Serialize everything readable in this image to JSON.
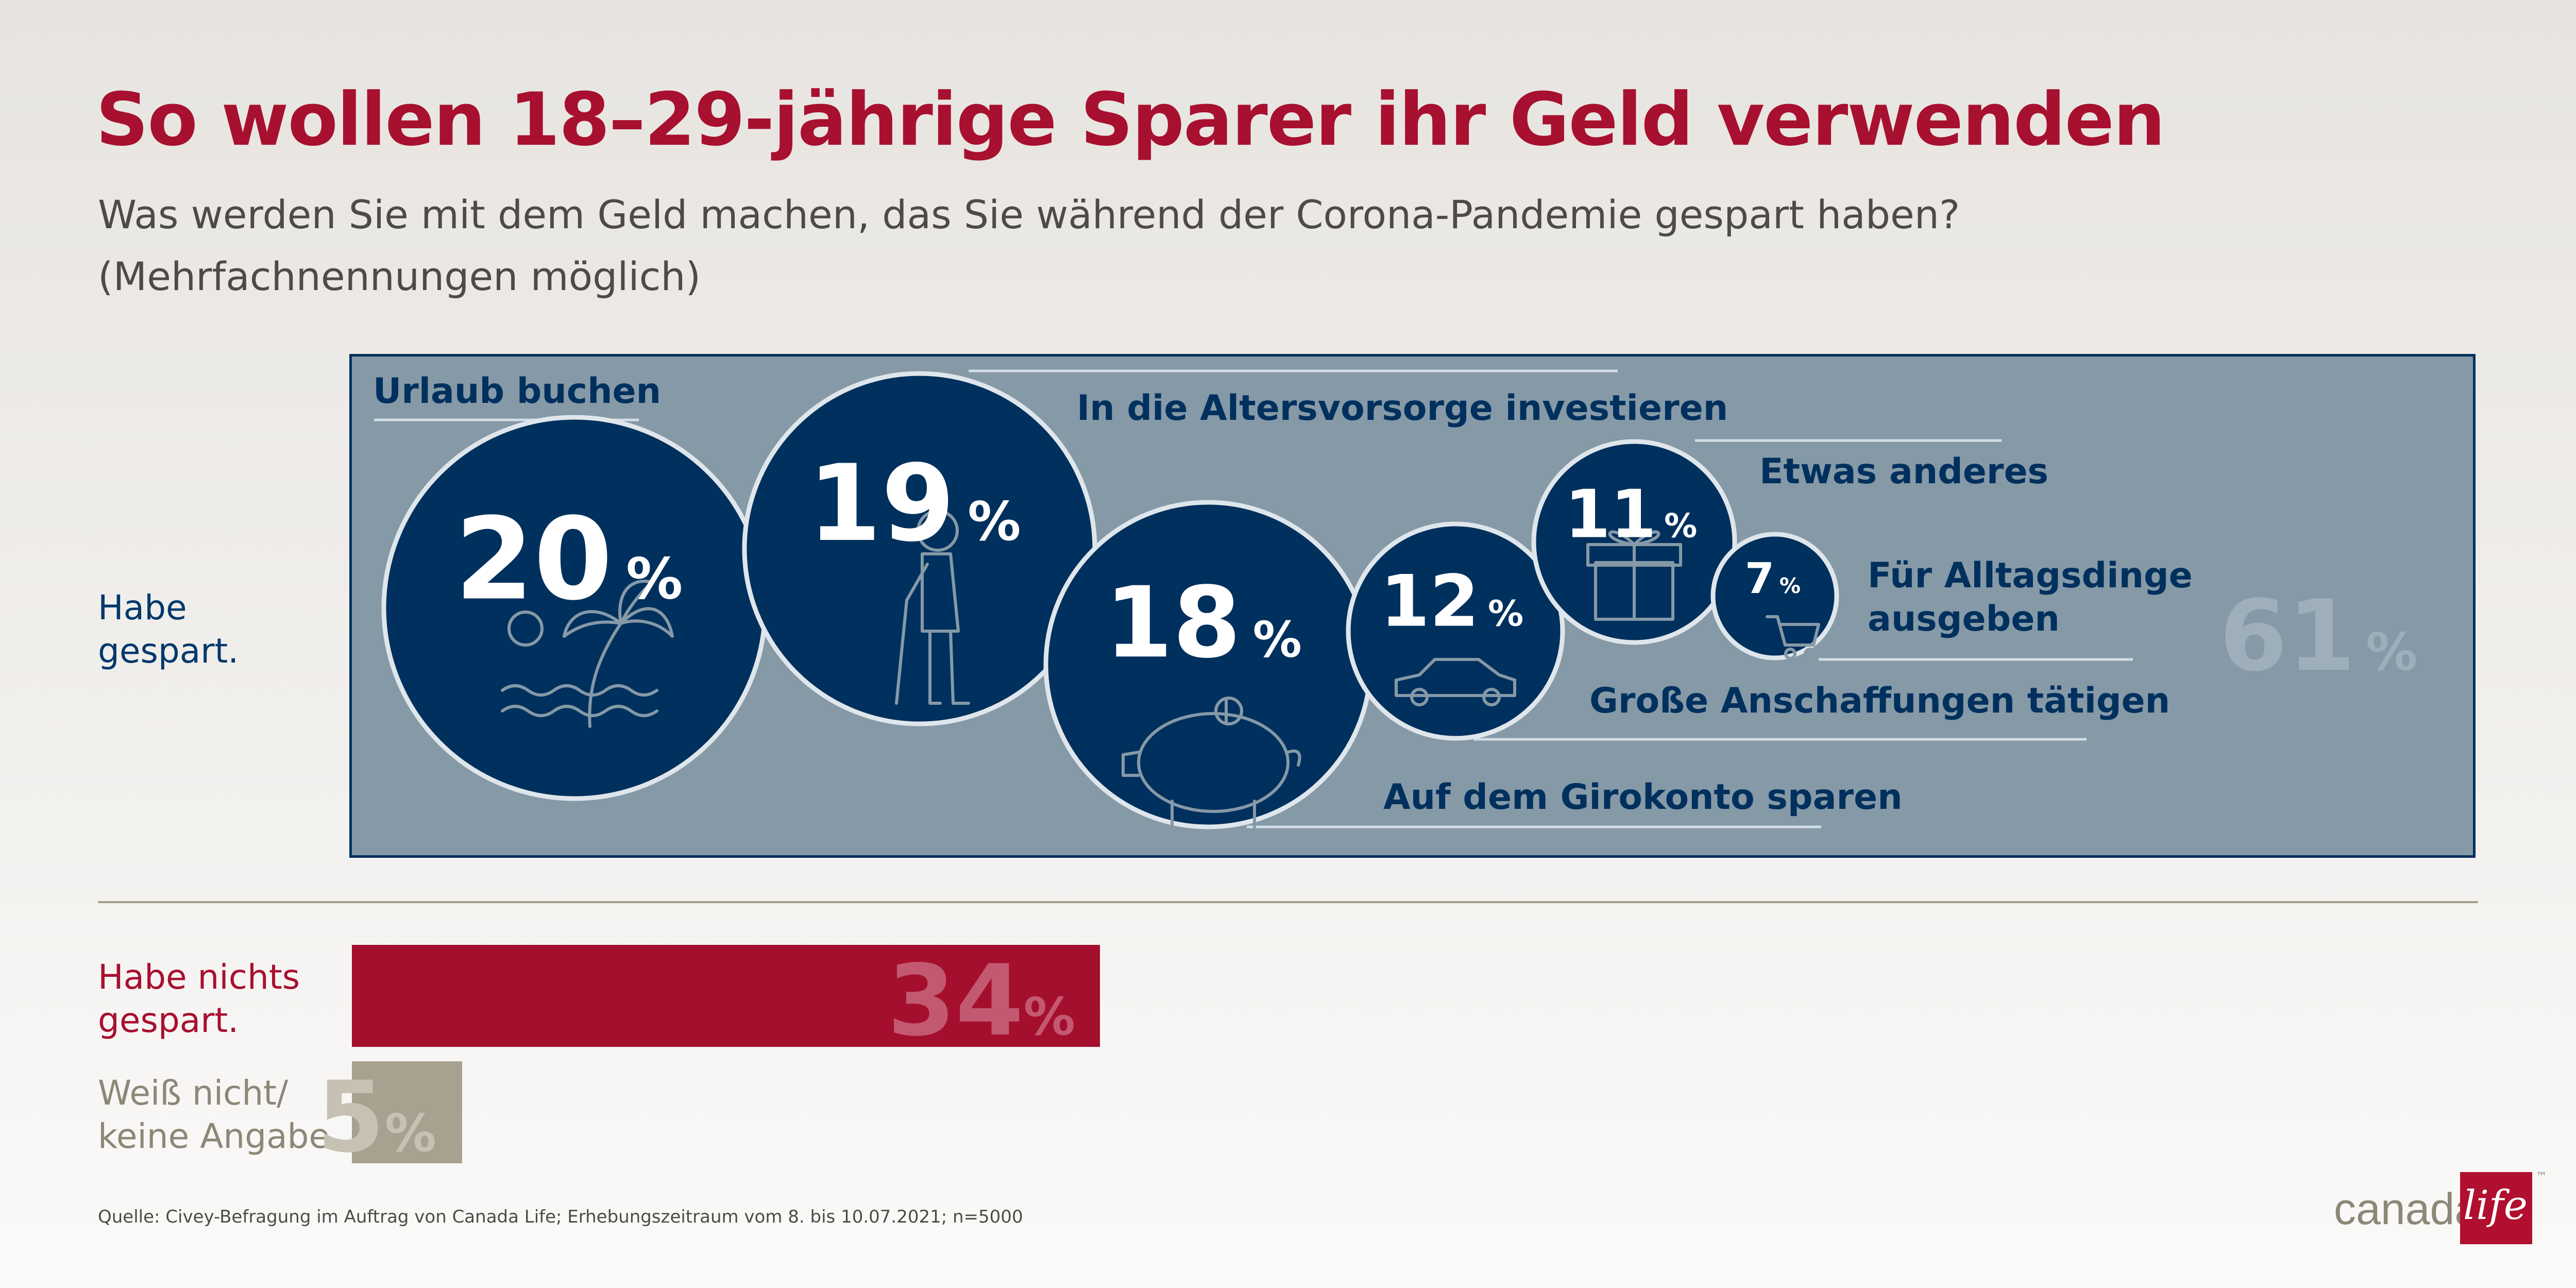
{
  "header": {
    "title": "So wollen 18–29-jährige Sparer ihr Geld verwenden",
    "subtitle_line1": "Was werden Sie mit dem Geld machen, das Sie während der Corona-Pandemie gespart haben?",
    "subtitle_line2": "(Mehrfachnennungen möglich)"
  },
  "rows": {
    "saved": "Habe gespart.",
    "not_saved": "Habe nichts gespart.",
    "unknown": "Weiß nicht/ keine Angabe."
  },
  "percent_sign": "%",
  "colors": {
    "title_red": "#a8102f",
    "navy": "#00305d",
    "panel_gray_blue": "#8599a7",
    "bar_red": "#a50f2e",
    "bar_khaki": "#a7a190"
  },
  "chart_data": [
    {
      "type": "bubble",
      "series": [
        {
          "label": "Urlaub buchen",
          "value": 20,
          "icon": "palm-beach-icon"
        },
        {
          "label": "In die Altersvorsorge investieren",
          "value": 19,
          "icon": "elderly-person-icon"
        },
        {
          "label": "Auf dem Girokonto sparen",
          "value": 18,
          "icon": "piggy-bank-icon"
        },
        {
          "label": "Große Anschaffungen tätigen",
          "value": 12,
          "icon": "car-icon"
        },
        {
          "label": "Etwas anderes",
          "value": 11,
          "icon": "gift-icon"
        },
        {
          "label": "Für Alltagsdinge ausgeben",
          "value": 7,
          "icon": "shopping-cart-icon"
        }
      ],
      "total_label": "Habe gespart.",
      "total_value": 61
    },
    {
      "type": "bar",
      "orientation": "horizontal",
      "categories": [
        "Habe nichts gespart.",
        "Weiß nicht/ keine Angabe."
      ],
      "values": [
        34,
        5
      ],
      "unit": "%"
    }
  ],
  "footer": {
    "source": "Quelle: Civey-Befragung im Auftrag von Canada Life; Erhebungszeitraum vom 8. bis 10.07.2021; n=5000"
  },
  "brand": {
    "wordmark": "canada",
    "logo_text": "life",
    "tm": "™"
  }
}
